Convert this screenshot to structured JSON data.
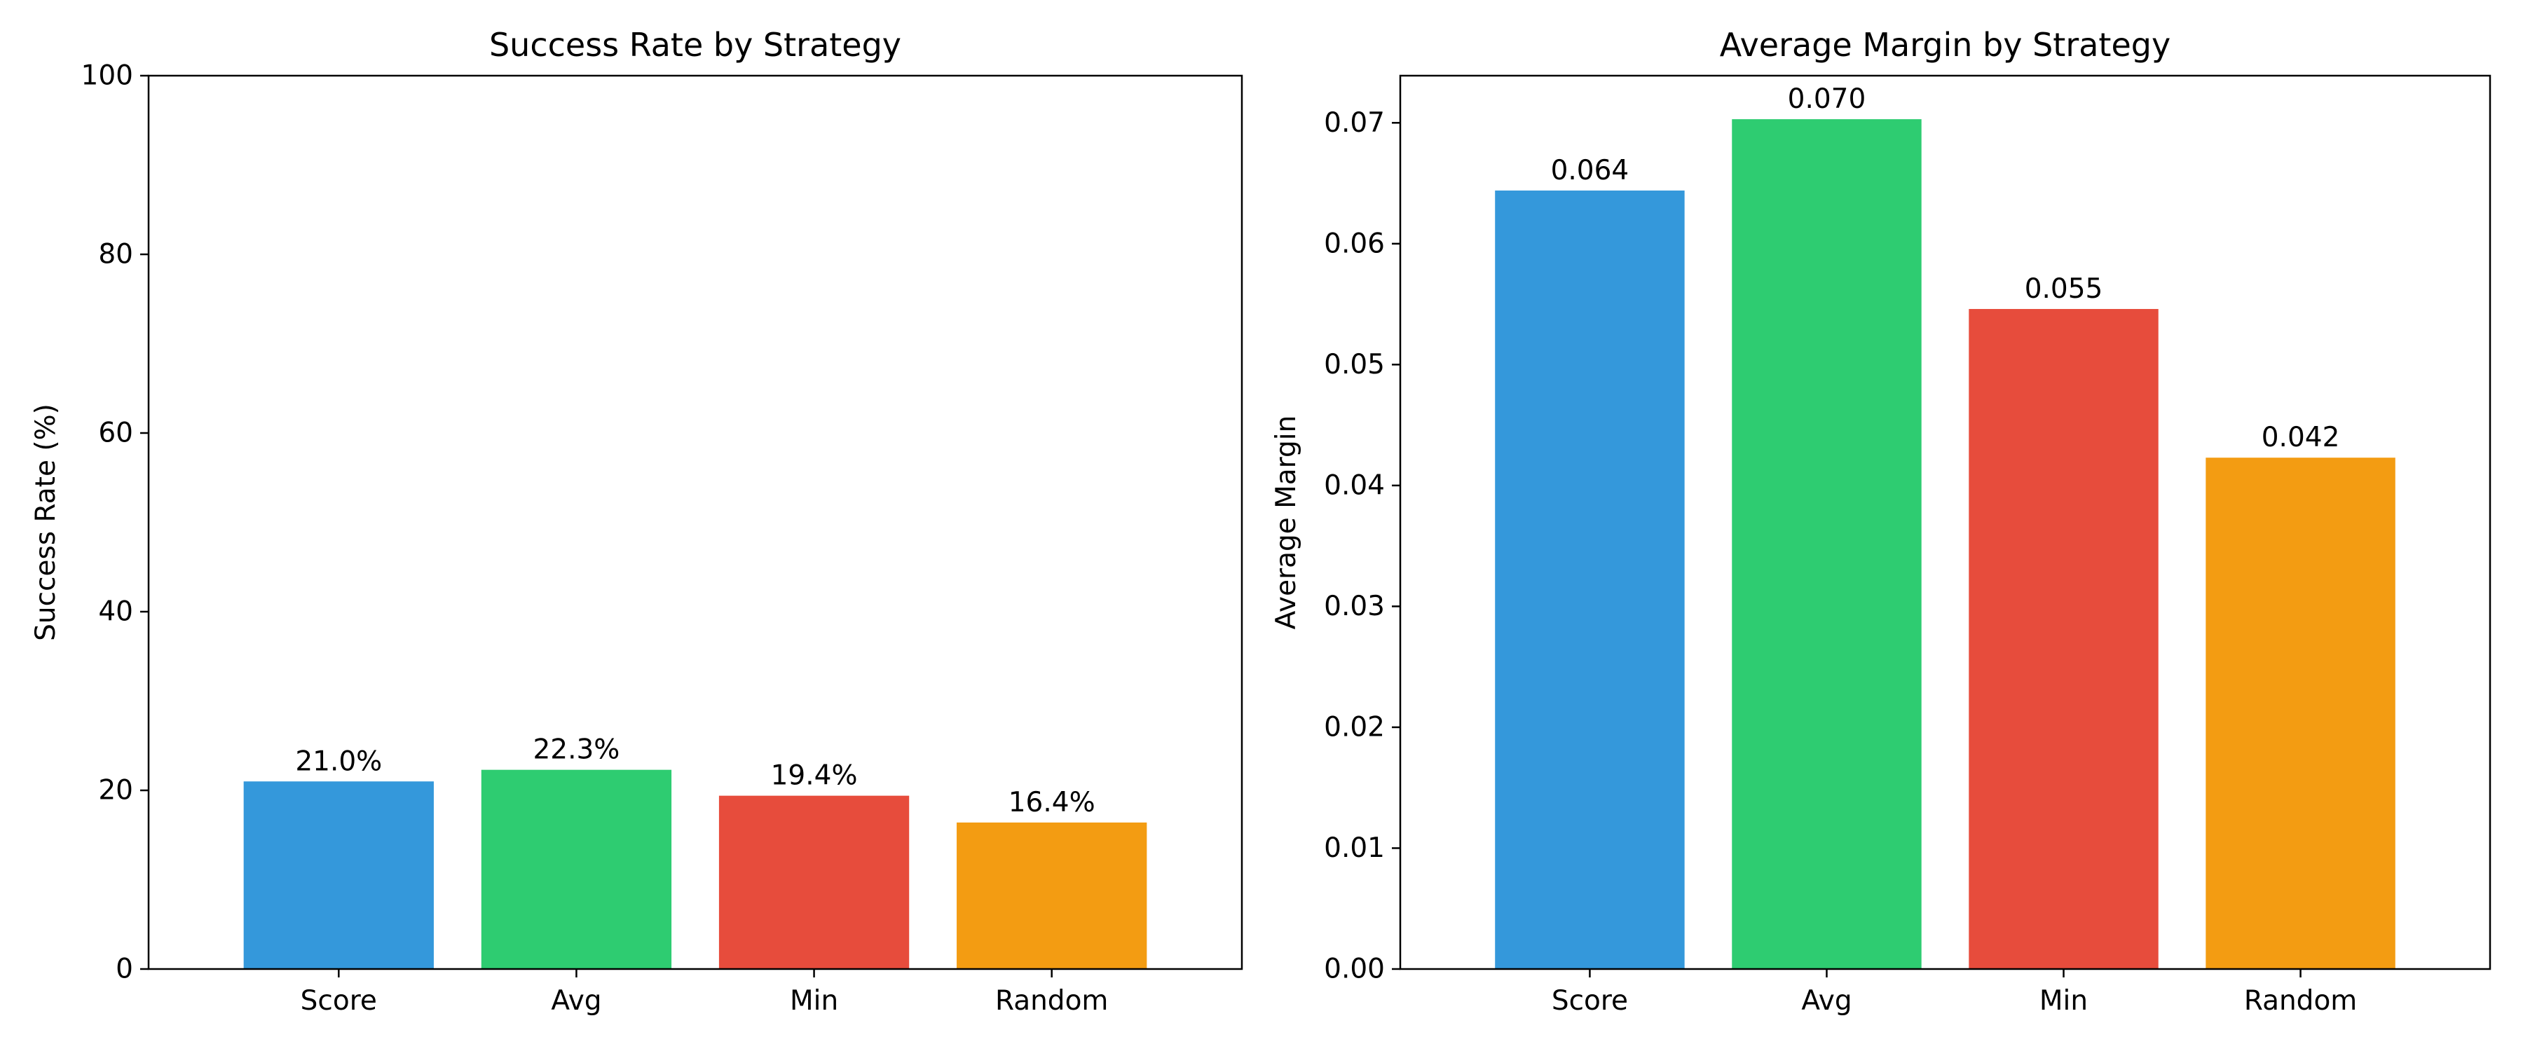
{
  "chart_data": [
    {
      "type": "bar",
      "title": "Success Rate by Strategy",
      "xlabel": "",
      "ylabel": "Success Rate (%)",
      "categories": [
        "Score",
        "Avg",
        "Min",
        "Random"
      ],
      "values": [
        21.0,
        22.3,
        19.4,
        16.4
      ],
      "value_labels": [
        "21.0%",
        "22.3%",
        "19.4%",
        "16.4%"
      ],
      "colors": [
        "#3498db",
        "#2ecc71",
        "#e74c3c",
        "#f39c12"
      ],
      "ylim": [
        0,
        100
      ],
      "yticks": [
        0,
        20,
        40,
        60,
        80,
        100
      ],
      "ytick_labels": [
        "0",
        "20",
        "40",
        "60",
        "80",
        "100"
      ],
      "grid": false,
      "legend": false
    },
    {
      "type": "bar",
      "title": "Average Margin by Strategy",
      "xlabel": "",
      "ylabel": "Average Margin",
      "categories": [
        "Score",
        "Avg",
        "Min",
        "Random"
      ],
      "values": [
        0.0644,
        0.0703,
        0.0546,
        0.0423
      ],
      "value_labels": [
        "0.064",
        "0.070",
        "0.055",
        "0.042"
      ],
      "colors": [
        "#3498db",
        "#2ecc71",
        "#e74c3c",
        "#f39c12"
      ],
      "ylim": [
        0,
        0.0739
      ],
      "yticks": [
        0,
        0.01,
        0.02,
        0.03,
        0.04,
        0.05,
        0.06,
        0.07
      ],
      "ytick_labels": [
        "0.00",
        "0.01",
        "0.02",
        "0.03",
        "0.04",
        "0.05",
        "0.06",
        "0.07"
      ],
      "grid": false,
      "legend": false
    }
  ]
}
